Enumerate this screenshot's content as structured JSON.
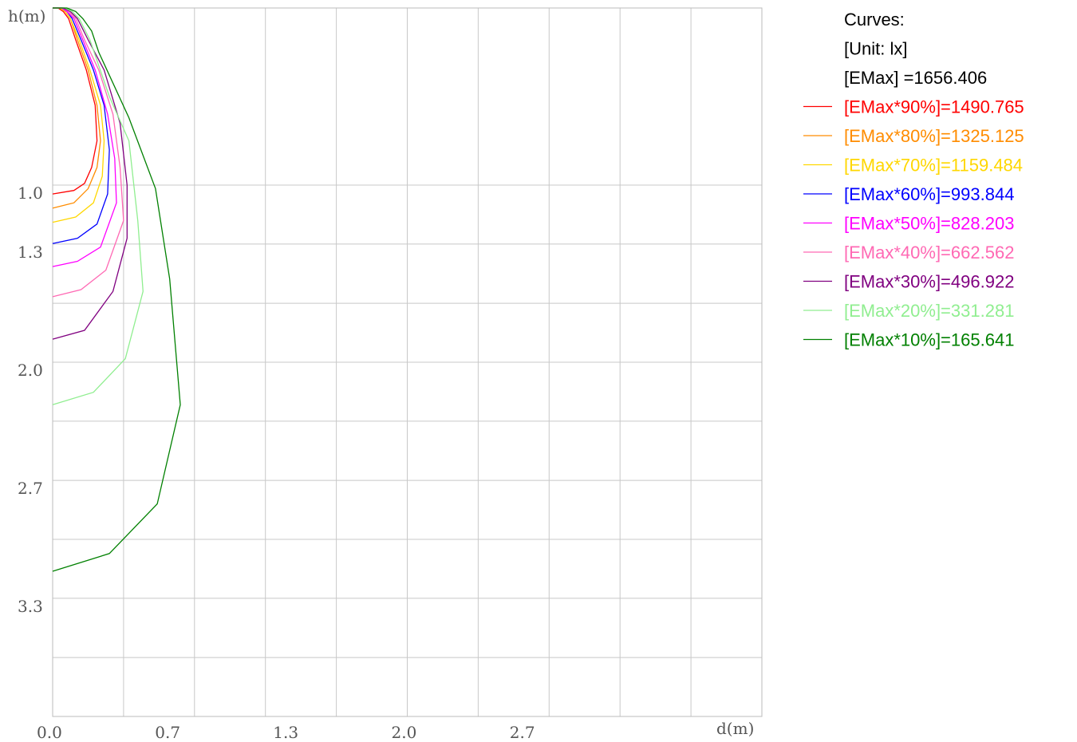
{
  "chart_data": {
    "type": "line",
    "xlabel": "d(m)",
    "ylabel": "h(m)",
    "xlim": [
      0,
      4.0
    ],
    "ylim": [
      0,
      4.0
    ],
    "y_inverted": true,
    "grid": true,
    "x_ticks": [
      {
        "value": 0.0,
        "label": "0.0"
      },
      {
        "value": 0.667,
        "label": "0.7"
      },
      {
        "value": 1.333,
        "label": "1.3"
      },
      {
        "value": 2.0,
        "label": "2.0"
      },
      {
        "value": 2.667,
        "label": "2.7"
      }
    ],
    "y_ticks": [
      {
        "value": 1.0,
        "label": "1.0"
      },
      {
        "value": 1.333,
        "label": "1.3"
      },
      {
        "value": 2.0,
        "label": "2.0"
      },
      {
        "value": 2.667,
        "label": "2.7"
      },
      {
        "value": 3.333,
        "label": "3.3"
      }
    ],
    "grid_x": [
      0.4,
      0.8,
      1.2,
      1.6,
      2.0,
      2.4,
      2.8,
      3.2,
      3.6
    ],
    "grid_y": [
      1.0,
      1.333,
      1.667,
      2.0,
      2.333,
      2.667,
      3.0,
      3.333,
      3.667
    ],
    "legend_position": "right",
    "legend_header": [
      "Curves:",
      "[Unit: lx]",
      "[EMax]   =1656.406"
    ],
    "series": [
      {
        "name": "[EMax*90%]=1490.765",
        "color": "#ff0000",
        "x": [
          0,
          0.03,
          0.06,
          0.09,
          0.13,
          0.19,
          0.24,
          0.25,
          0.22,
          0.18,
          0.12,
          0
        ],
        "y": [
          0,
          0.0,
          0.02,
          0.06,
          0.18,
          0.35,
          0.55,
          0.75,
          0.9,
          0.99,
          1.03,
          1.05
        ]
      },
      {
        "name": "[EMax*80%]=1325.125",
        "color": "#ff8c00",
        "x": [
          0,
          0.04,
          0.07,
          0.1,
          0.14,
          0.2,
          0.25,
          0.27,
          0.25,
          0.2,
          0.12,
          0
        ],
        "y": [
          0,
          0.0,
          0.02,
          0.06,
          0.18,
          0.35,
          0.55,
          0.75,
          0.9,
          1.02,
          1.1,
          1.13
        ]
      },
      {
        "name": "[EMax*70%]=1159.484",
        "color": "#ffd700",
        "x": [
          0,
          0.04,
          0.07,
          0.1,
          0.15,
          0.21,
          0.27,
          0.29,
          0.28,
          0.23,
          0.13,
          0
        ],
        "y": [
          0,
          0.0,
          0.02,
          0.06,
          0.18,
          0.35,
          0.55,
          0.75,
          0.95,
          1.1,
          1.18,
          1.21
        ]
      },
      {
        "name": "[EMax*60%]=993.844",
        "color": "#0000ff",
        "x": [
          0,
          0.05,
          0.08,
          0.11,
          0.16,
          0.23,
          0.29,
          0.32,
          0.31,
          0.25,
          0.14,
          0
        ],
        "y": [
          0,
          0.0,
          0.02,
          0.06,
          0.18,
          0.35,
          0.55,
          0.8,
          1.05,
          1.22,
          1.3,
          1.33
        ]
      },
      {
        "name": "[EMax*50%]=828.203",
        "color": "#ff00ff",
        "x": [
          0,
          0.05,
          0.08,
          0.12,
          0.17,
          0.24,
          0.31,
          0.35,
          0.36,
          0.27,
          0.14,
          0
        ],
        "y": [
          0,
          0.0,
          0.02,
          0.06,
          0.18,
          0.35,
          0.6,
          0.85,
          1.1,
          1.35,
          1.43,
          1.46
        ]
      },
      {
        "name": "[EMax*40%]=662.562",
        "color": "#ff69b4",
        "x": [
          0,
          0.06,
          0.09,
          0.13,
          0.18,
          0.26,
          0.34,
          0.38,
          0.4,
          0.3,
          0.16,
          0
        ],
        "y": [
          0,
          0.0,
          0.02,
          0.06,
          0.18,
          0.35,
          0.6,
          0.9,
          1.2,
          1.48,
          1.59,
          1.63
        ]
      },
      {
        "name": "[EMax*30%]=496.922",
        "color": "#800080",
        "x": [
          0,
          0.06,
          0.1,
          0.14,
          0.2,
          0.29,
          0.38,
          0.42,
          0.42,
          0.34,
          0.18,
          0
        ],
        "y": [
          0,
          0.0,
          0.02,
          0.06,
          0.18,
          0.35,
          0.65,
          1.0,
          1.3,
          1.6,
          1.82,
          1.87
        ]
      },
      {
        "name": "[EMax*20%]=331.281",
        "color": "#90ee90",
        "x": [
          0,
          0.07,
          0.11,
          0.15,
          0.21,
          0.32,
          0.43,
          0.48,
          0.51,
          0.41,
          0.23,
          0
        ],
        "y": [
          0,
          0.0,
          0.02,
          0.06,
          0.18,
          0.5,
          0.75,
          1.2,
          1.6,
          1.98,
          2.17,
          2.24
        ]
      },
      {
        "name": "[EMax*10%]=165.641",
        "color": "#008000",
        "x": [
          0,
          0.08,
          0.13,
          0.17,
          0.22,
          0.26,
          0.43,
          0.58,
          0.66,
          0.72,
          0.59,
          0.32,
          0
        ],
        "y": [
          0,
          0.0,
          0.02,
          0.06,
          0.13,
          0.25,
          0.62,
          1.02,
          1.53,
          2.24,
          2.8,
          3.08,
          3.18
        ]
      }
    ]
  }
}
